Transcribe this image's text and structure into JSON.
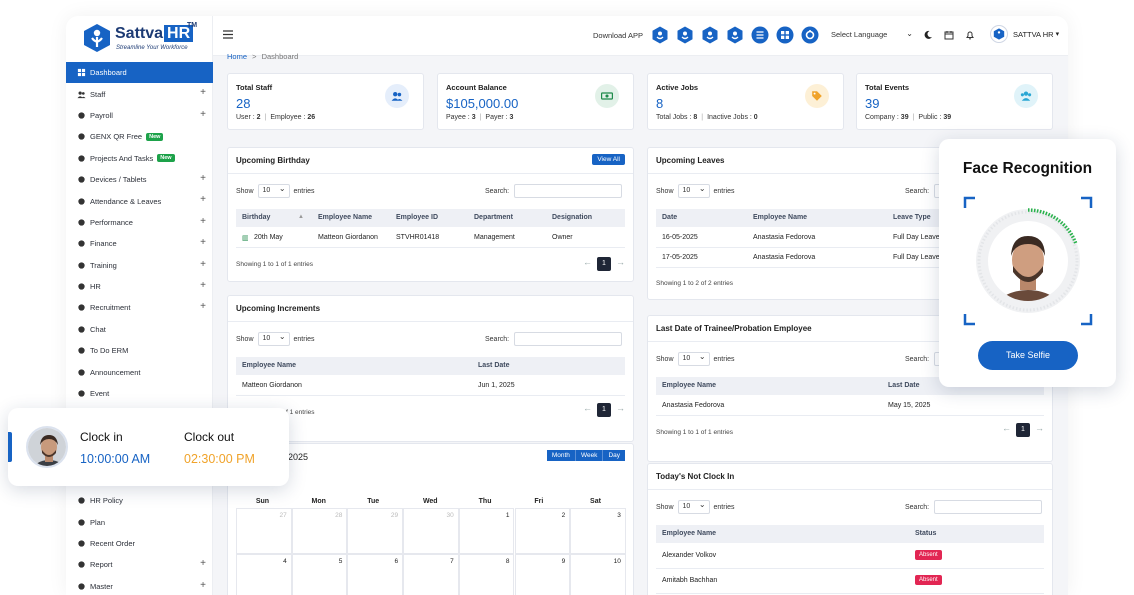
{
  "brand": {
    "name": "Sattva",
    "name_hr": "HR",
    "tm": "TM",
    "tagline": "Streamline Your Workforce"
  },
  "sidebar": {
    "items": [
      {
        "label": "Dashboard",
        "icon": "dashboard-icon",
        "active": true,
        "plus": false
      },
      {
        "label": "Staff",
        "icon": "users-icon",
        "plus": true
      },
      {
        "label": "Payroll",
        "icon": "wallet-icon",
        "plus": true
      },
      {
        "label": "GENX QR Free",
        "icon": "qr-icon",
        "badge": "New",
        "plus": false
      },
      {
        "label": "Projects And Tasks",
        "icon": "tasks-icon",
        "badge": "New",
        "plus": false
      },
      {
        "label": "Devices / Tablets",
        "icon": "device-icon",
        "plus": true
      },
      {
        "label": "Attendance & Leaves",
        "icon": "calendar-icon",
        "plus": true
      },
      {
        "label": "Performance",
        "icon": "gauge-icon",
        "plus": true
      },
      {
        "label": "Finance",
        "icon": "finance-icon",
        "plus": true
      },
      {
        "label": "Training",
        "icon": "training-icon",
        "plus": true
      },
      {
        "label": "HR",
        "icon": "hr-icon",
        "plus": true
      },
      {
        "label": "Recruitment",
        "icon": "recruit-icon",
        "plus": true
      },
      {
        "label": "Chat",
        "icon": "chat-icon",
        "plus": false
      },
      {
        "label": "To Do ERM",
        "icon": "todo-icon",
        "plus": false
      },
      {
        "label": "Announcement",
        "icon": "megaphone-icon",
        "plus": false
      },
      {
        "label": "Event",
        "icon": "event-icon",
        "plus": false
      }
    ],
    "bottom_items": [
      {
        "label": "HR Policy",
        "icon": "policy-icon",
        "plus": false
      },
      {
        "label": "Plan",
        "icon": "trophy-icon",
        "plus": false
      },
      {
        "label": "Recent Order",
        "icon": "order-icon",
        "plus": false
      },
      {
        "label": "Report",
        "icon": "report-icon",
        "plus": true
      },
      {
        "label": "Master",
        "icon": "master-icon",
        "plus": true
      }
    ]
  },
  "topbar": {
    "download_label": "Download APP",
    "language": "Select Language",
    "user": "SATTVA HR"
  },
  "breadcrumb": {
    "home": "Home",
    "sep": ">",
    "current": "Dashboard"
  },
  "stats": [
    {
      "label": "Total Staff",
      "value": "28",
      "sub": [
        [
          "User : ",
          "2"
        ],
        [
          "Employee : ",
          "26"
        ]
      ],
      "icon": "users-icon",
      "icon_bg": "#e5eefb",
      "icon_color": "#1763c4"
    },
    {
      "label": "Account Balance",
      "value": "$105,000.00",
      "sub": [
        [
          "Payee : ",
          "3"
        ],
        [
          "Payer : ",
          "3"
        ]
      ],
      "icon": "money-icon",
      "icon_bg": "#e2f1e8",
      "icon_color": "#1e8a4a"
    },
    {
      "label": "Active Jobs",
      "value": "8",
      "sub": [
        [
          "Total Jobs : ",
          "8"
        ],
        [
          "Inactive Jobs : ",
          "0"
        ]
      ],
      "icon": "tag-icon",
      "icon_bg": "#fdf0d6",
      "icon_color": "#f0a32a"
    },
    {
      "label": "Total Events",
      "value": "39",
      "sub": [
        [
          "Company : ",
          "39"
        ],
        [
          "Public : ",
          "39"
        ]
      ],
      "icon": "group-icon",
      "icon_bg": "#e0f3f9",
      "icon_color": "#2aa7d4"
    }
  ],
  "birthday": {
    "title": "Upcoming Birthday",
    "view_all": "View All",
    "show": "Show",
    "entries_val": "10",
    "entries": "entries",
    "search": "Search:",
    "cols": [
      "Birthday",
      "Employee Name",
      "Employee ID",
      "Department",
      "Designation"
    ],
    "rows": [
      [
        "20th May",
        "Matteon Giordanon",
        "STVHR01418",
        "Management",
        "Owner"
      ]
    ],
    "info": "Showing 1 to 1 of 1 entries",
    "page": "1"
  },
  "increments": {
    "title": "Upcoming Increments",
    "show": "Show",
    "entries_val": "10",
    "entries": "entries",
    "search": "Search:",
    "cols": [
      "Employee Name",
      "Last Date"
    ],
    "rows": [
      [
        "Matteon Giordanon",
        "Jun 1, 2025"
      ]
    ],
    "info_tail": "f 1 entries",
    "page": "1"
  },
  "calendar": {
    "title_tail": "2025",
    "buttons": [
      "Month",
      "Week",
      "Day"
    ],
    "days": [
      "Sun",
      "Mon",
      "Tue",
      "Wed",
      "Thu",
      "Fri",
      "Sat"
    ],
    "weeks": [
      [
        "27",
        "28",
        "29",
        "30",
        "1",
        "2",
        "3"
      ],
      [
        "4",
        "5",
        "6",
        "7",
        "8",
        "9",
        "10"
      ]
    ],
    "muted_first_week": 4
  },
  "leaves": {
    "title": "Upcoming Leaves",
    "show": "Show",
    "entries_val": "10",
    "entries": "entries",
    "search": "Search:",
    "cols": [
      "Date",
      "Employee Name",
      "Leave Type"
    ],
    "rows": [
      [
        "16-05-2025",
        "Anastasia Fedorova",
        "Full Day Leave"
      ],
      [
        "17-05-2025",
        "Anastasia Fedorova",
        "Full Day Leave"
      ]
    ],
    "info": "Showing 1 to 2 of 2 entries"
  },
  "probation": {
    "title": "Last Date of Trainee/Probation Employee",
    "show": "Show",
    "entries_val": "10",
    "entries": "entries",
    "search": "Search:",
    "cols": [
      "Employee Name",
      "Last Date"
    ],
    "rows": [
      [
        "Anastasia Fedorova",
        "May 15, 2025"
      ]
    ],
    "info": "Showing 1 to 1 of 1 entries",
    "page": "1"
  },
  "notclock": {
    "title": "Today's Not Clock In",
    "show": "Show",
    "entries_val": "10",
    "entries": "entries",
    "search": "Search:",
    "cols": [
      "Employee Name",
      "Status"
    ],
    "rows": [
      [
        "Alexander Volkov",
        "Absent"
      ],
      [
        "Amitabh Bachhan",
        "Absent"
      ]
    ]
  },
  "clock": {
    "in_label": "Clock in",
    "in_time": "10:00:00 AM",
    "out_label": "Clock out",
    "out_time": "02:30:00 PM"
  },
  "face": {
    "title": "Face Recognition",
    "button": "Take Selfie"
  }
}
